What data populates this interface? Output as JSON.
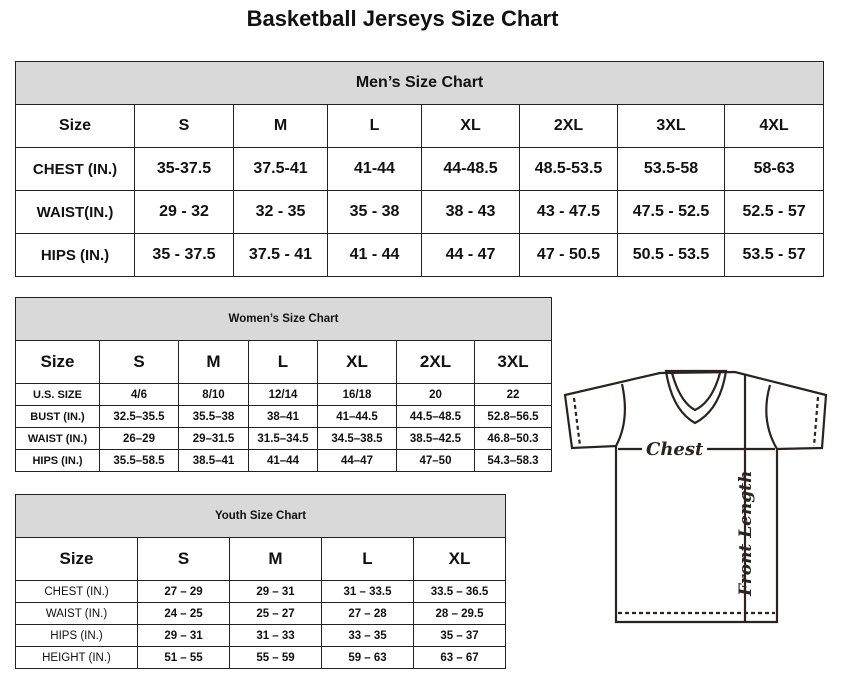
{
  "title": "Basketball Jerseys Size Chart",
  "men": {
    "caption": "Men’s Size Chart",
    "header": [
      "Size",
      "S",
      "M",
      "L",
      "XL",
      "2XL",
      "3XL",
      "4XL"
    ],
    "rows": [
      [
        "CHEST (IN.)",
        "35-37.5",
        "37.5-41",
        "41-44",
        "44-48.5",
        "48.5-53.5",
        "53.5-58",
        "58-63"
      ],
      [
        "WAIST(IN.)",
        "29 - 32",
        "32 - 35",
        "35 - 38",
        "38 - 43",
        "43 - 47.5",
        "47.5 - 52.5",
        "52.5 - 57"
      ],
      [
        "HIPS (IN.)",
        "35 - 37.5",
        "37.5 - 41",
        "41 - 44",
        "44 - 47",
        "47 - 50.5",
        "50.5 - 53.5",
        "53.5 - 57"
      ]
    ]
  },
  "women": {
    "caption": "Women’s Size Chart",
    "header": [
      "Size",
      "S",
      "M",
      "L",
      "XL",
      "2XL",
      "3XL"
    ],
    "rows": [
      [
        "U.S. SIZE",
        "4/6",
        "8/10",
        "12/14",
        "16/18",
        "20",
        "22"
      ],
      [
        "BUST (IN.)",
        "32.5–35.5",
        "35.5–38",
        "38–41",
        "41–44.5",
        "44.5–48.5",
        "52.8–56.5"
      ],
      [
        "WAIST (IN.)",
        "26–29",
        "29–31.5",
        "31.5–34.5",
        "34.5–38.5",
        "38.5–42.5",
        "46.8–50.3"
      ],
      [
        "HIPS (IN.)",
        "35.5–58.5",
        "38.5–41",
        "41–44",
        "44–47",
        "47–50",
        "54.3–58.3"
      ]
    ]
  },
  "youth": {
    "caption": "Youth Size Chart",
    "header": [
      "Size",
      "S",
      "M",
      "L",
      "XL"
    ],
    "rows": [
      [
        "CHEST (IN.)",
        "27 – 29",
        "29 – 31",
        "31 – 33.5",
        "33.5 – 36.5"
      ],
      [
        "WAIST (IN.)",
        "24 – 25",
        "25 – 27",
        "27 – 28",
        "28 – 29.5"
      ],
      [
        "HIPS (IN.)",
        "29 – 31",
        "31 – 33",
        "33 – 35",
        "35 – 37"
      ],
      [
        "HEIGHT (IN.)",
        "51 – 55",
        "55 – 59",
        "59 – 63",
        "63 – 67"
      ]
    ]
  },
  "diagram": {
    "chest_label": "Chest",
    "length_label": "Front Length"
  }
}
